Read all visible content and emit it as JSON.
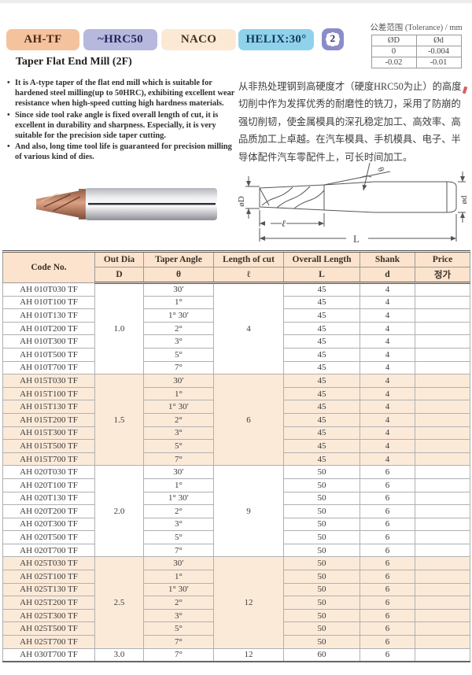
{
  "badges": [
    {
      "label": "AH-TF",
      "bg": "#f5c29e",
      "color": "#4a2a12"
    },
    {
      "label": "~HRC50",
      "bg": "#b7b8dd",
      "color": "#26265a"
    },
    {
      "label": "NACO",
      "bg": "#fbe9d4",
      "color": "#3f3222"
    },
    {
      "label": "HELIX:30°",
      "bg": "#8fd2ea",
      "color": "#12395e"
    },
    {
      "label": "2",
      "bg": "#8b8dc8",
      "color": "#2c2c6e"
    }
  ],
  "tolerance": {
    "title": "公差范围 (Tolerance) / mm",
    "headers": [
      "ØD",
      "Ød"
    ],
    "rows": [
      [
        "0",
        "-0.004"
      ],
      [
        "-0.02",
        "-0.01"
      ]
    ]
  },
  "product_title": "Taper Flat End Mill (2F)",
  "bullets": [
    "It is A-type taper of the flat end mill which is suitable for hardened steel milling(up to 50HRC), exhibiting excellent wear resistance when high-speed cutting high hardness materials.",
    "Since side tool rake angle is fixed overall length of cut, it is excellent in durability and sharpness. Especially, it is very suitable for the precision side taper cutting.",
    "And also, long time tool life is guaranteed for precision milling of various kind of dies."
  ],
  "description_cn": "从非热处理钢到高硬度才（硬度HRC50为止）的高度切削中作为发挥优秀的耐磨性的铣刀，采用了防崩的强切削韧，使金属模具的深孔稳定加工、高效率、高品质加工上卓越。在汽车模具、手机模具、电子、半导体配件汽车零配件上，可长时间加工。",
  "diagram_labels": {
    "outer_dia": "øD",
    "taper_angle": "θ",
    "shank_dia": "ød",
    "length_of_cut": "ℓ",
    "overall_length": "L"
  },
  "table": {
    "header_row1": [
      "Code No.",
      "Out Dia",
      "Taper Angle",
      "Length of cut",
      "Overall Length",
      "Shank",
      "Price"
    ],
    "header_row2": [
      "D",
      "θ",
      "ℓ",
      "L",
      "d",
      "정가"
    ],
    "groups": [
      {
        "out_dia": "1.0",
        "length_of_cut": "4",
        "shaded": false,
        "rows": [
          {
            "code": "AH 010T030 TF",
            "angle": "30′",
            "overall": "45",
            "shank": "4",
            "price": ""
          },
          {
            "code": "AH 010T100 TF",
            "angle": "1°",
            "overall": "45",
            "shank": "4",
            "price": ""
          },
          {
            "code": "AH 010T130 TF",
            "angle": "1° 30′",
            "overall": "45",
            "shank": "4",
            "price": ""
          },
          {
            "code": "AH 010T200 TF",
            "angle": "2°",
            "overall": "45",
            "shank": "4",
            "price": ""
          },
          {
            "code": "AH 010T300 TF",
            "angle": "3°",
            "overall": "45",
            "shank": "4",
            "price": ""
          },
          {
            "code": "AH 010T500 TF",
            "angle": "5°",
            "overall": "45",
            "shank": "4",
            "price": ""
          },
          {
            "code": "AH 010T700 TF",
            "angle": "7°",
            "overall": "45",
            "shank": "4",
            "price": ""
          }
        ]
      },
      {
        "out_dia": "1.5",
        "length_of_cut": "6",
        "shaded": true,
        "rows": [
          {
            "code": "AH 015T030 TF",
            "angle": "30′",
            "overall": "45",
            "shank": "4",
            "price": ""
          },
          {
            "code": "AH 015T100 TF",
            "angle": "1°",
            "overall": "45",
            "shank": "4",
            "price": ""
          },
          {
            "code": "AH 015T130 TF",
            "angle": "1° 30′",
            "overall": "45",
            "shank": "4",
            "price": ""
          },
          {
            "code": "AH 015T200 TF",
            "angle": "2°",
            "overall": "45",
            "shank": "4",
            "price": ""
          },
          {
            "code": "AH 015T300 TF",
            "angle": "3°",
            "overall": "45",
            "shank": "4",
            "price": ""
          },
          {
            "code": "AH 015T500 TF",
            "angle": "5°",
            "overall": "45",
            "shank": "4",
            "price": ""
          },
          {
            "code": "AH 015T700 TF",
            "angle": "7°",
            "overall": "45",
            "shank": "4",
            "price": ""
          }
        ]
      },
      {
        "out_dia": "2.0",
        "length_of_cut": "9",
        "shaded": false,
        "rows": [
          {
            "code": "AH 020T030 TF",
            "angle": "30′",
            "overall": "50",
            "shank": "6",
            "price": ""
          },
          {
            "code": "AH 020T100 TF",
            "angle": "1°",
            "overall": "50",
            "shank": "6",
            "price": ""
          },
          {
            "code": "AH 020T130 TF",
            "angle": "1° 30′",
            "overall": "50",
            "shank": "6",
            "price": ""
          },
          {
            "code": "AH 020T200 TF",
            "angle": "2°",
            "overall": "50",
            "shank": "6",
            "price": ""
          },
          {
            "code": "AH 020T300 TF",
            "angle": "3°",
            "overall": "50",
            "shank": "6",
            "price": ""
          },
          {
            "code": "AH 020T500 TF",
            "angle": "5°",
            "overall": "50",
            "shank": "6",
            "price": ""
          },
          {
            "code": "AH 020T700 TF",
            "angle": "7°",
            "overall": "50",
            "shank": "6",
            "price": ""
          }
        ]
      },
      {
        "out_dia": "2.5",
        "length_of_cut": "12",
        "shaded": true,
        "rows": [
          {
            "code": "AH 025T030 TF",
            "angle": "30′",
            "overall": "50",
            "shank": "6",
            "price": ""
          },
          {
            "code": "AH 025T100 TF",
            "angle": "1°",
            "overall": "50",
            "shank": "6",
            "price": ""
          },
          {
            "code": "AH 025T130 TF",
            "angle": "1° 30′",
            "overall": "50",
            "shank": "6",
            "price": ""
          },
          {
            "code": "AH 025T200 TF",
            "angle": "2°",
            "overall": "50",
            "shank": "6",
            "price": ""
          },
          {
            "code": "AH 025T300 TF",
            "angle": "3°",
            "overall": "50",
            "shank": "6",
            "price": ""
          },
          {
            "code": "AH 025T500 TF",
            "angle": "5°",
            "overall": "50",
            "shank": "6",
            "price": ""
          },
          {
            "code": "AH 025T700 TF",
            "angle": "7°",
            "overall": "50",
            "shank": "6",
            "price": ""
          }
        ]
      }
    ],
    "footer_row": {
      "code": "AH 030T700 TF",
      "out_dia": "3.0",
      "angle": "7°",
      "length_of_cut": "12",
      "overall": "60",
      "shank": "6",
      "price": ""
    }
  }
}
